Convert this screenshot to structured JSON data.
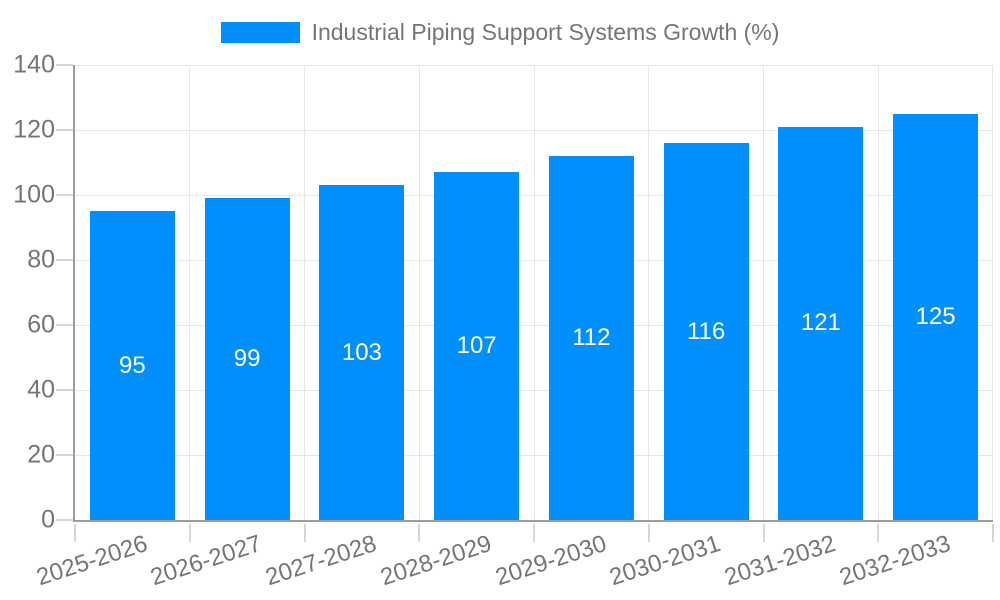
{
  "chart_data": {
    "type": "bar",
    "title": "",
    "series_name": "Industrial Piping Support Systems Growth (%)",
    "categories": [
      "2025-2026",
      "2026-2027",
      "2027-2028",
      "2028-2029",
      "2029-2030",
      "2030-2031",
      "2031-2032",
      "2032-2033"
    ],
    "values": [
      95,
      99,
      103,
      107,
      112,
      116,
      121,
      125
    ],
    "ylim": [
      0,
      140
    ],
    "yticks": [
      0,
      20,
      40,
      60,
      80,
      100,
      120,
      140
    ],
    "grid": true,
    "legend_position": "top",
    "x_label_rotation_deg": -18,
    "data_labels_inside_bars": true,
    "colors": {
      "bar": "#008FFB",
      "axis_line": "#9e9e9e",
      "gridline": "#e6e6e6",
      "tick": "#d6d6d6",
      "axis_text": "#757575",
      "data_label_text": "#ffffff",
      "background": "#ffffff"
    }
  }
}
